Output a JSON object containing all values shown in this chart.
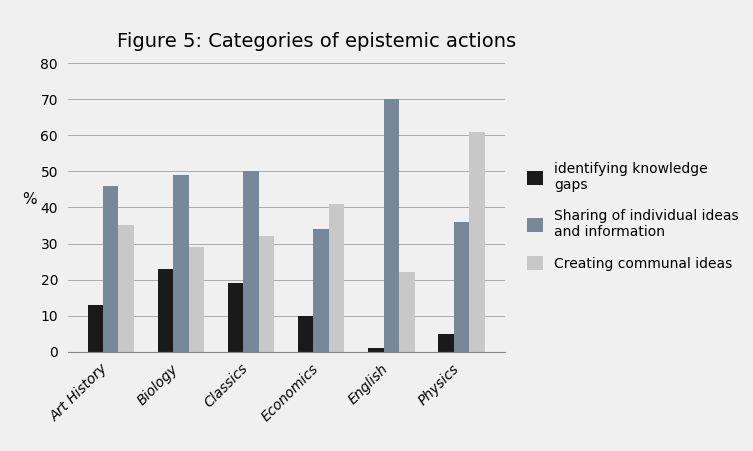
{
  "title": "Figure 5: Categories of epistemic actions",
  "categories": [
    "Art History",
    "Biology",
    "Classics",
    "Economics",
    "English",
    "Physics"
  ],
  "series": [
    {
      "label": "identifying knowledge\ngaps",
      "color": "#1a1a1a",
      "values": [
        13,
        23,
        19,
        10,
        1,
        5
      ]
    },
    {
      "label": "Sharing of individual ideas\nand information",
      "color": "#778899",
      "values": [
        46,
        49,
        50,
        34,
        70,
        36
      ]
    },
    {
      "label": "Creating communal ideas",
      "color": "#c8c8c8",
      "values": [
        35,
        29,
        32,
        41,
        22,
        61
      ]
    }
  ],
  "ylabel": "%",
  "ylim": [
    0,
    80
  ],
  "yticks": [
    0,
    10,
    20,
    30,
    40,
    50,
    60,
    70,
    80
  ],
  "title_fontsize": 14,
  "axis_label_fontsize": 11,
  "tick_fontsize": 10,
  "legend_fontsize": 10,
  "background_color": "#f0f0f0",
  "bar_width": 0.22
}
